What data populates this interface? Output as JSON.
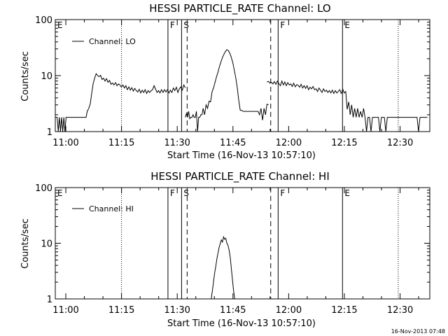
{
  "chart_data": [
    {
      "type": "line",
      "title": "HESSI PARTICLE_RATE Channel: LO",
      "xlabel": "Start Time (16-Nov-13 10:57:10)",
      "ylabel": "Counts/sec",
      "yscale": "log",
      "ylim": [
        1,
        100
      ],
      "xlim": [
        "10:57:10",
        "12:38:00"
      ],
      "x_ticks": [
        "11:00",
        "11:15",
        "11:30",
        "11:45",
        "12:00",
        "12:15",
        "12:30"
      ],
      "y_ticks": [
        "1",
        "10",
        "100"
      ],
      "legend": {
        "label": "Channel: LO",
        "position": "top-left"
      },
      "markers": [
        {
          "label": "E",
          "time": "10:57:10",
          "style": "solid"
        },
        {
          "label": "",
          "time": "11:15",
          "style": "dotted"
        },
        {
          "label": "F",
          "time": "11:27:30",
          "style": "solid"
        },
        {
          "label": "S",
          "time": "11:31:10",
          "style": "solid"
        },
        {
          "label": "",
          "time": "11:32:40",
          "style": "dashed"
        },
        {
          "label": "",
          "time": "11:55:10",
          "style": "dashed"
        },
        {
          "label": "F",
          "time": "11:57:10",
          "style": "solid"
        },
        {
          "label": "E",
          "time": "12:14:30",
          "style": "solid"
        },
        {
          "label": "",
          "time": "12:29:30",
          "style": "dotted"
        }
      ],
      "series": [
        {
          "segments": [
            {
              "x": [
                0,
                0.5,
                0.8,
                1.1,
                1.4,
                1.7,
                2.0,
                2.3,
                2.6,
                2.9,
                3.2,
                3.5,
                3.8,
                4.1,
                4.4,
                4.7,
                5.0,
                5.3,
                5.6,
                5.9,
                6.2,
                6.5,
                6.8,
                7.1,
                7.4,
                7.7,
                8.0,
                8.3,
                8.6,
                9.0,
                9.4,
                9.8,
                10.2,
                10.6,
                11.0,
                11.4,
                11.8,
                12.2,
                12.6,
                13.0,
                13.4,
                13.8,
                14.2,
                14.6,
                15.0,
                15.4,
                15.8,
                16.2,
                16.6,
                17.0,
                17.4,
                17.8,
                18.2,
                18.6,
                19.0,
                19.4,
                19.8,
                20.2,
                20.6,
                21.0,
                21.4,
                21.8,
                22.2,
                22.6,
                23.0,
                23.4,
                23.8,
                24.2,
                24.6,
                25.0,
                25.4,
                25.8,
                26.2,
                26.6,
                27.0,
                27.4,
                27.8,
                28.2,
                28.6,
                29.0,
                29.4,
                29.8,
                30.2,
                30.6,
                31.0,
                31.4,
                31.8,
                32.2,
                32.6,
                33.0,
                33.4,
                33.8,
                34.2,
                34.6,
                35.0
              ],
              "y": [
                1.8,
                1.8,
                1.0,
                1.8,
                1.0,
                1.8,
                1.0,
                1.8,
                1.0,
                1.8,
                1.8,
                1.8,
                1.8,
                1.8,
                1.8,
                1.8,
                1.8,
                1.8,
                1.8,
                1.8,
                1.8,
                1.8,
                1.8,
                1.8,
                1.8,
                1.8,
                1.8,
                1.8,
                2.3,
                2.6,
                3.1,
                4.8,
                7.2,
                9.0,
                10.8,
                10.0,
                9.6,
                10.1,
                8.5,
                9.0,
                8.0,
                8.8,
                7.6,
                8.2,
                7.0,
                7.4,
                6.8,
                7.5,
                6.6,
                7.1,
                6.8,
                6.2,
                6.8,
                6.0,
                6.6,
                5.6,
                6.3,
                5.5,
                6.1,
                5.3,
                5.9,
                5.4,
                5.1,
                5.7,
                4.9,
                5.5,
                5.0,
                5.6,
                4.8,
                5.4,
                5.0,
                5.4,
                5.6,
                6.6,
                5.7,
                5.0,
                5.4,
                4.9,
                5.6,
                5.0,
                5.6,
                5.1,
                5.6,
                4.9,
                5.5,
                5.0,
                6.0,
                5.4,
                6.2,
                5.0,
                5.8,
                6.3,
                5.5,
                6.8,
                6.1
              ]
            },
            {
              "x": [
                35.0,
                35.3,
                35.6,
                35.9,
                36.2,
                36.5,
                36.8,
                37.1,
                37.4,
                37.7,
                38.0,
                38.3,
                38.6,
                38.9,
                39.2,
                39.5,
                39.8,
                40.2,
                40.6,
                41.0,
                41.4,
                41.8,
                42.2,
                42.6,
                43.0,
                43.4,
                43.8,
                44.2,
                44.6,
                45.0,
                45.4,
                45.8,
                46.2,
                46.6,
                47.0,
                47.4,
                47.8,
                48.2,
                48.6,
                49.0,
                49.4,
                49.8,
                50.2,
                50.6,
                51.0,
                51.4,
                51.8,
                52.2,
                52.6,
                53.0,
                53.4,
                53.8,
                54.2,
                54.6,
                55.0,
                55.4,
                55.8,
                56.2,
                56.6,
                57.0,
                57.4
              ],
              "y": [
                1.8,
                2.1,
                1.8,
                2.3,
                1.7,
                1.8,
                1.8,
                2.0,
                1.8,
                1.8,
                2.3,
                1.0,
                1.8,
                1.8,
                2.0,
                2.0,
                2.6,
                2.0,
                3.0,
                2.6,
                3.5,
                3.4,
                5.1,
                6.0,
                7.5,
                9.5,
                11.5,
                14.5,
                17.5,
                21.0,
                24.0,
                27.0,
                29.0,
                28.0,
                25.0,
                21.0,
                17.0,
                12.5,
                9.0,
                6.0,
                3.6,
                2.4,
                2.4,
                2.3,
                2.3,
                2.3,
                2.3,
                2.3,
                2.3,
                2.3,
                2.3,
                2.3,
                2.3,
                2.3,
                2.0,
                2.6,
                1.6,
                2.6,
                2.0,
                3.1,
                3.0
              ]
            },
            {
              "x": [
                57.0,
                57.4,
                57.8,
                58.2,
                58.6,
                59.0,
                59.4,
                59.8,
                60.2,
                60.6,
                61.0,
                61.4,
                61.8,
                62.2,
                62.6,
                63.0,
                63.4,
                63.8,
                64.2,
                64.6,
                65.0,
                65.4,
                65.8,
                66.2,
                66.6,
                67.0,
                67.4,
                67.8,
                68.2,
                68.6,
                69.0,
                69.4,
                69.8,
                70.2,
                70.6,
                71.0,
                71.4,
                71.8,
                72.2,
                72.6,
                73.0,
                73.4,
                73.8,
                74.2,
                74.6,
                75.0,
                75.4,
                75.8,
                76.2,
                76.6,
                77.0,
                77.4,
                77.8,
                78.2,
                78.6,
                79.0,
                79.4,
                79.8,
                80.2,
                80.6,
                81.0,
                81.4,
                81.8,
                82.2,
                82.6,
                83.0,
                83.4,
                83.8,
                84.2,
                84.6,
                85.0,
                85.4,
                85.8,
                86.2,
                86.6,
                87.0,
                87.4,
                87.8,
                88.2,
                88.6,
                89.0,
                89.4,
                89.8,
                90.2,
                90.6,
                91.0,
                91.4,
                91.8,
                92.2,
                92.6,
                93.0,
                93.4,
                93.8,
                94.2,
                94.6,
                95.0,
                95.4,
                95.8,
                96.2,
                96.6,
                97.0,
                97.4,
                97.8,
                98.2,
                98.6,
                99.0,
                99.4,
                99.8,
                100.2
              ],
              "y": [
                7.7,
                7.9,
                7.3,
                7.6,
                7.1,
                7.8,
                7.0,
                8.0,
                7.2,
                6.6,
                8.0,
                6.8,
                7.7,
                6.6,
                7.5,
                6.8,
                7.1,
                6.4,
                7.3,
                6.3,
                6.9,
                6.7,
                6.2,
                7.0,
                6.0,
                6.6,
                5.9,
                6.6,
                5.6,
                6.2,
                5.8,
                6.4,
                5.6,
                5.8,
                5.2,
                6.0,
                5.5,
                5.0,
                5.8,
                5.2,
                5.5,
                5.0,
                5.4,
                4.9,
                5.5,
                4.8,
                5.4,
                4.9,
                5.2,
                5.6,
                4.8,
                5.7,
                4.9,
                5.2,
                2.5,
                3.4,
                2.0,
                3.0,
                1.8,
                2.6,
                1.8,
                2.6,
                1.8,
                2.3,
                1.8,
                2.6,
                1.8,
                1.0,
                1.8,
                1.8,
                1.0,
                1.8,
                1.8,
                1.8,
                1.8,
                1.8,
                1.0,
                1.8,
                1.8,
                1.8,
                1.0,
                1.8,
                1.8,
                1.8,
                1.8,
                1.8,
                1.8,
                1.8,
                1.8,
                1.8,
                1.8,
                1.8,
                1.8,
                1.8,
                1.8,
                1.8,
                1.8,
                1.8,
                1.8,
                1.8,
                1.8,
                1.8,
                1.0,
                1.8,
                1.8,
                1.8,
                1.8,
                1.8,
                1.8
              ]
            }
          ]
        }
      ]
    },
    {
      "type": "line",
      "title": "HESSI PARTICLE_RATE Channel: HI",
      "xlabel": "Start Time (16-Nov-13 10:57:10)",
      "ylabel": "Counts/sec",
      "yscale": "log",
      "ylim": [
        1,
        100
      ],
      "xlim": [
        "10:57:10",
        "12:38:00"
      ],
      "x_ticks": [
        "11:00",
        "11:15",
        "11:30",
        "11:45",
        "12:00",
        "12:15",
        "12:30"
      ],
      "y_ticks": [
        "1",
        "10",
        "100"
      ],
      "legend": {
        "label": "Channel: HI",
        "position": "top-left"
      },
      "markers": [
        {
          "label": "E",
          "time": "10:57:10",
          "style": "solid"
        },
        {
          "label": "",
          "time": "11:15",
          "style": "dotted"
        },
        {
          "label": "F",
          "time": "11:27:30",
          "style": "solid"
        },
        {
          "label": "S",
          "time": "11:31:10",
          "style": "solid"
        },
        {
          "label": "",
          "time": "11:32:40",
          "style": "dashed"
        },
        {
          "label": "",
          "time": "11:55:10",
          "style": "dashed"
        },
        {
          "label": "F",
          "time": "11:57:10",
          "style": "solid"
        },
        {
          "label": "E",
          "time": "12:14:30",
          "style": "solid"
        },
        {
          "label": "",
          "time": "12:29:30",
          "style": "dotted"
        }
      ],
      "series": [
        {
          "segments": [
            {
              "x": [
                42.0,
                42.3,
                42.6,
                42.9,
                43.2,
                43.5,
                43.8,
                44.1,
                44.4,
                44.7,
                45.0,
                45.3,
                45.6,
                45.9,
                46.2,
                46.5,
                46.8,
                47.1,
                47.4,
                47.7,
                48.0,
                48.3
              ],
              "y": [
                1.0,
                1.4,
                2.0,
                2.9,
                3.8,
                5.2,
                6.6,
                8.4,
                9.8,
                11.5,
                10.5,
                13.0,
                11.8,
                12.3,
                10.0,
                9.2,
                7.5,
                5.6,
                3.5,
                2.2,
                1.4,
                1.0
              ]
            }
          ]
        }
      ]
    }
  ],
  "footer": {
    "stamp": "16-Nov-2013 07:48"
  }
}
